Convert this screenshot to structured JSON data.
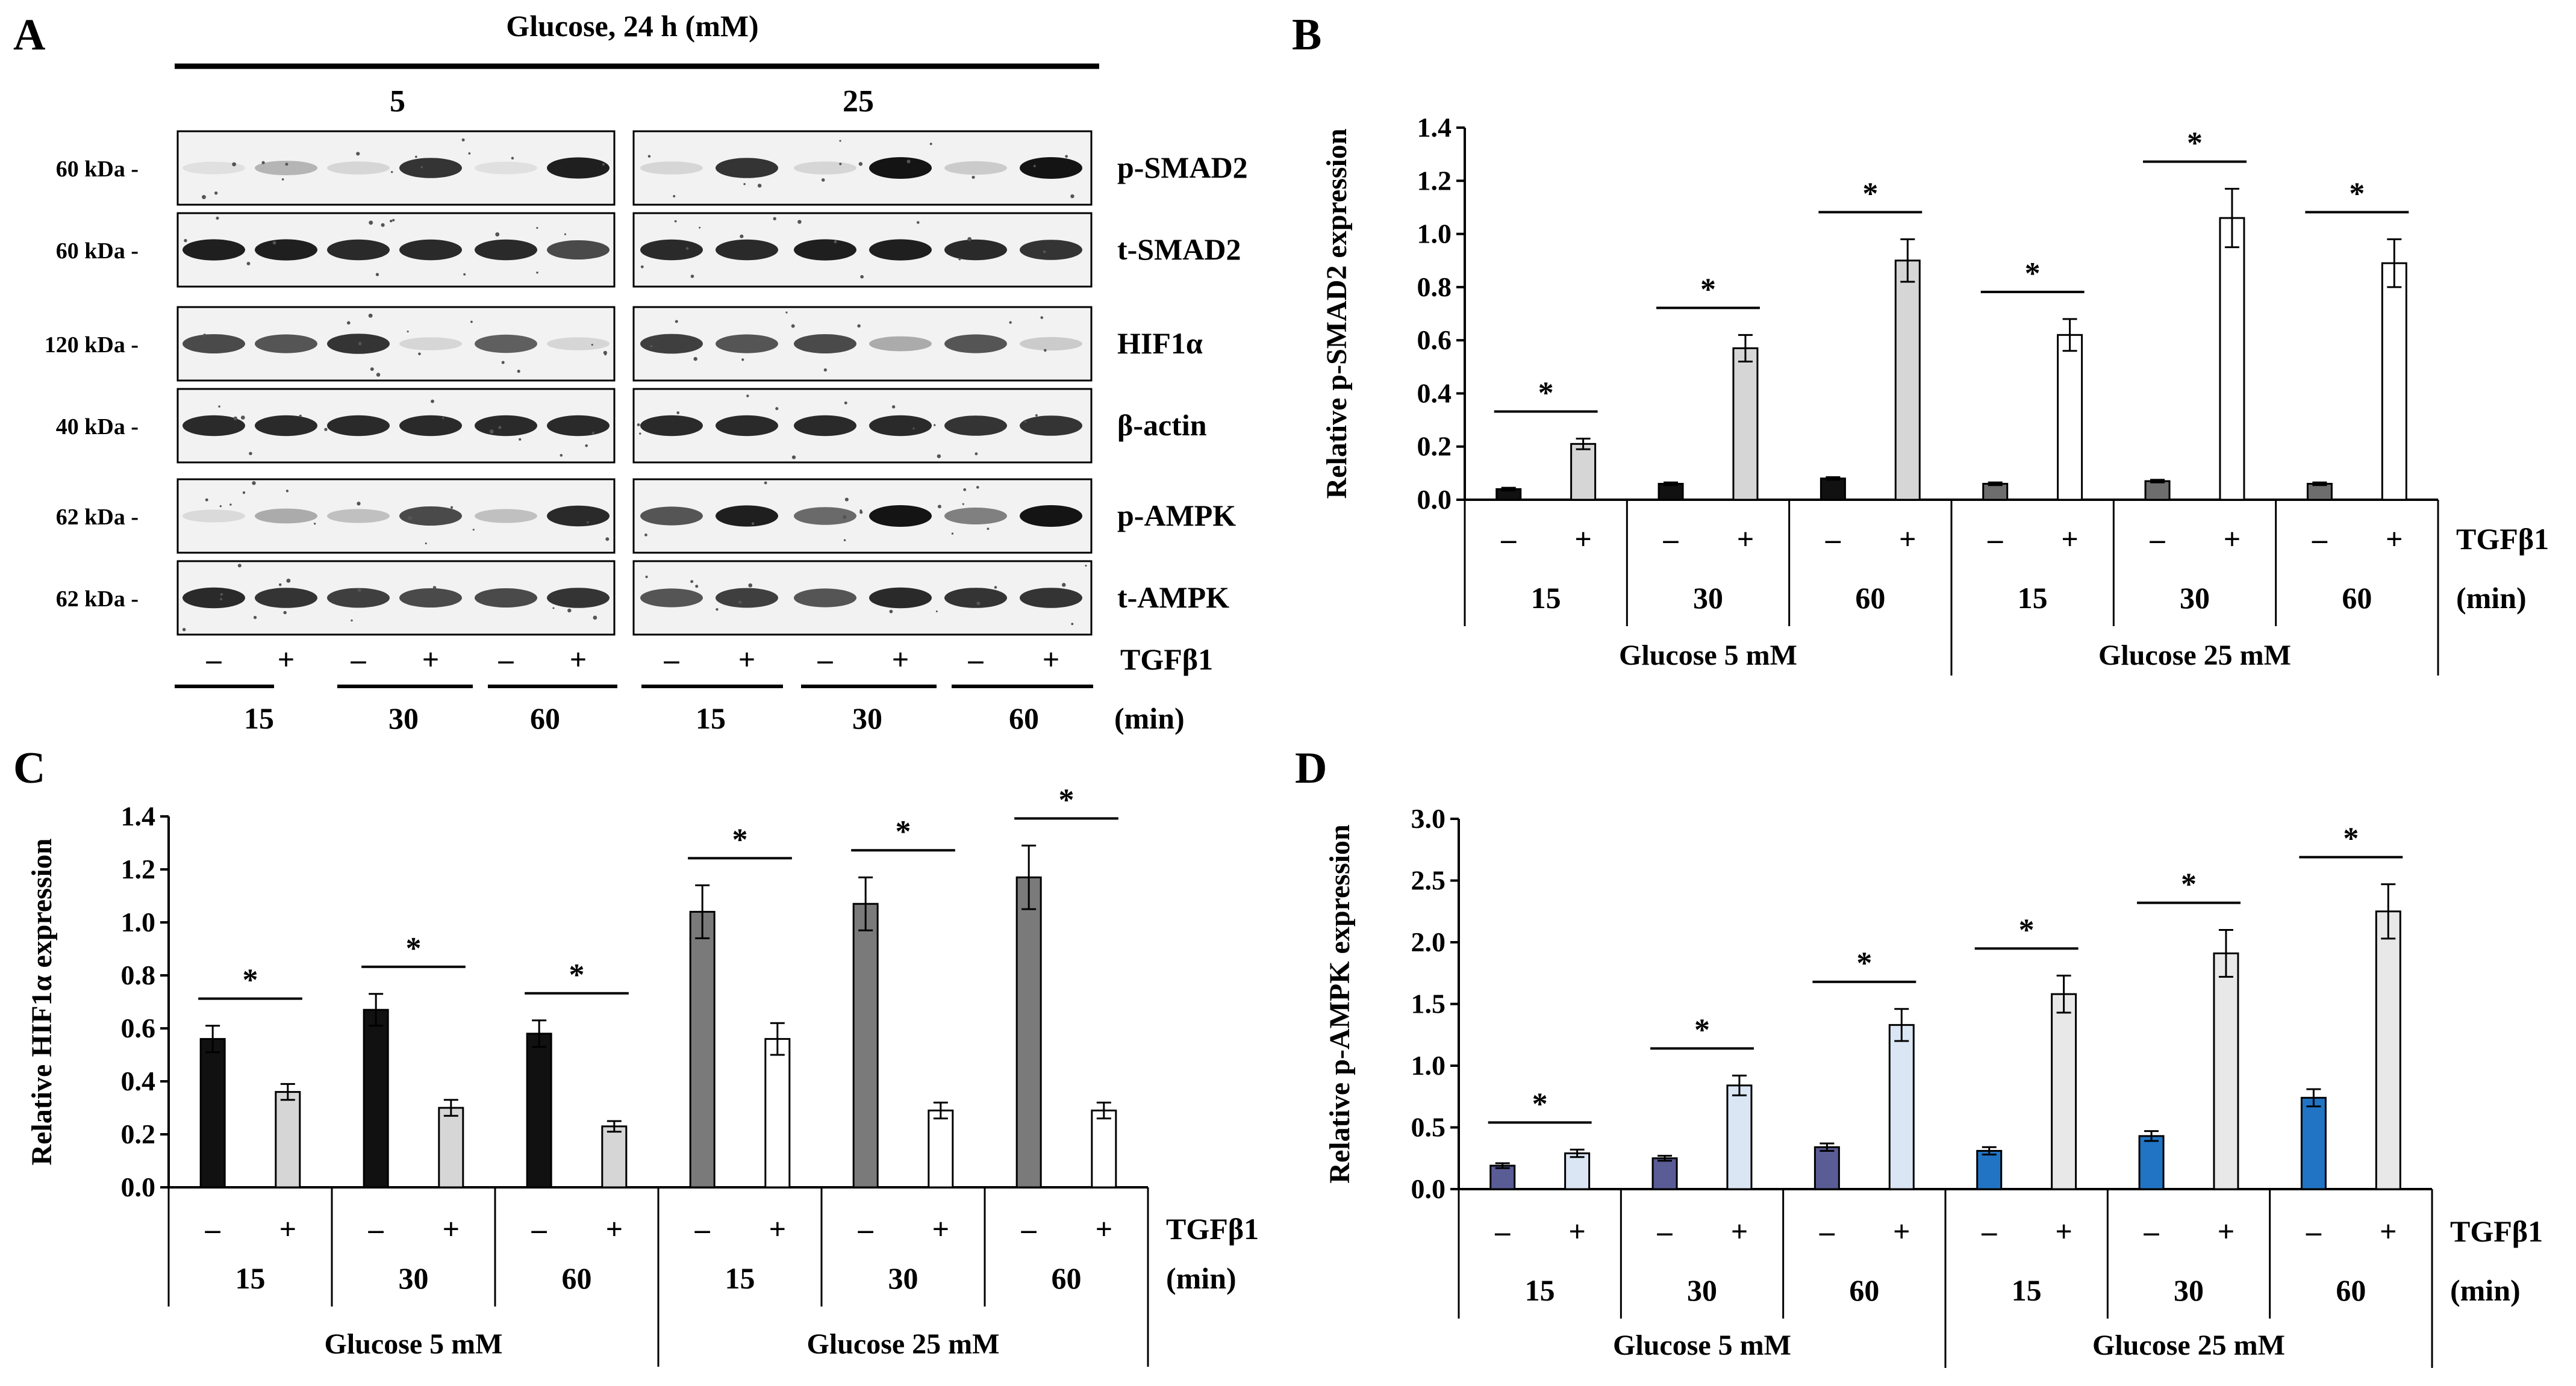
{
  "panel_letters": [
    "A",
    "B",
    "C",
    "D"
  ],
  "blot": {
    "glucose_title": "Glucose, 24 h (mM)",
    "group_5": "5",
    "group_25": "25",
    "rows": [
      {
        "mw": "60 kDa -",
        "name": "p-SMAD2"
      },
      {
        "mw": "60 kDa -",
        "name": "t-SMAD2"
      },
      {
        "mw": "120 kDa -",
        "name": "HIF1α"
      },
      {
        "mw": "40 kDa -",
        "name": "β-actin"
      },
      {
        "mw": "62 kDa -",
        "name": "p-AMPK"
      },
      {
        "mw": "62 kDa -",
        "name": "t-AMPK"
      }
    ],
    "treatment_signs": [
      "–",
      "+",
      "–",
      "+",
      "–",
      "+",
      "–",
      "+",
      "–",
      "+",
      "–",
      "+"
    ],
    "treatment_label": "TGFβ1",
    "times": [
      "15",
      "30",
      "60",
      "15",
      "30",
      "60"
    ],
    "time_unit": "(min)"
  },
  "chart_data": [
    {
      "panel": "B",
      "type": "bar",
      "ylabel": "Relative p-SMAD2 expression",
      "ylim": [
        0,
        1.4
      ],
      "yticks": [
        "0.0",
        "0.2",
        "0.4",
        "0.6",
        "0.8",
        "1.0",
        "1.2",
        "1.4"
      ],
      "treatment_label": "TGFβ1",
      "time_unit": "(min)",
      "signs": [
        "–",
        "+"
      ],
      "times": [
        "15",
        "30",
        "60",
        "15",
        "30",
        "60"
      ],
      "groups": [
        "Glucose 5 mM",
        "Glucose 25 mM"
      ],
      "significance": "*",
      "minus_values": [
        0.04,
        0.06,
        0.08,
        0.06,
        0.07,
        0.06
      ],
      "minus_errors": [
        0.005,
        0.005,
        0.005,
        0.005,
        0.005,
        0.005
      ],
      "plus_values": [
        0.21,
        0.57,
        0.9,
        0.62,
        1.06,
        0.89
      ],
      "plus_errors": [
        0.02,
        0.05,
        0.08,
        0.06,
        0.11,
        0.09
      ],
      "minus_colors": [
        "#111111",
        "#111111",
        "#111111",
        "#6d6d6d",
        "#6d6d6d",
        "#6d6d6d"
      ],
      "plus_colors": [
        "#d6d6d6",
        "#d6d6d6",
        "#d6d6d6",
        "#ffffff",
        "#ffffff",
        "#ffffff"
      ]
    },
    {
      "panel": "C",
      "type": "bar",
      "ylabel": "Relative HIF1α expression",
      "ylim": [
        0,
        1.4
      ],
      "yticks": [
        "0.0",
        "0.2",
        "0.4",
        "0.6",
        "0.8",
        "1.0",
        "1.2",
        "1.4"
      ],
      "treatment_label": "TGFβ1",
      "time_unit": "(min)",
      "signs": [
        "–",
        "+"
      ],
      "times": [
        "15",
        "30",
        "60",
        "15",
        "30",
        "60"
      ],
      "groups": [
        "Glucose 5 mM",
        "Glucose 25 mM"
      ],
      "significance": "*",
      "minus_values": [
        0.56,
        0.67,
        0.58,
        1.04,
        1.07,
        1.17
      ],
      "minus_errors": [
        0.05,
        0.06,
        0.05,
        0.1,
        0.1,
        0.12
      ],
      "plus_values": [
        0.36,
        0.3,
        0.23,
        0.56,
        0.29,
        0.29
      ],
      "plus_errors": [
        0.03,
        0.03,
        0.02,
        0.06,
        0.03,
        0.03
      ],
      "minus_colors": [
        "#111111",
        "#111111",
        "#111111",
        "#7a7a7a",
        "#7a7a7a",
        "#7a7a7a"
      ],
      "plus_colors": [
        "#d6d6d6",
        "#d6d6d6",
        "#d6d6d6",
        "#ffffff",
        "#ffffff",
        "#ffffff"
      ]
    },
    {
      "panel": "D",
      "type": "bar",
      "ylabel": "Relative p-AMPK expression",
      "ylim": [
        0,
        3.0
      ],
      "yticks": [
        "0.0",
        "0.5",
        "1.0",
        "1.5",
        "2.0",
        "2.5",
        "3.0"
      ],
      "treatment_label": "TGFβ1",
      "time_unit": "(min)",
      "signs": [
        "–",
        "+"
      ],
      "times": [
        "15",
        "30",
        "60",
        "15",
        "30",
        "60"
      ],
      "groups": [
        "Glucose 5 mM",
        "Glucose 25 mM"
      ],
      "significance": "*",
      "minus_values": [
        0.19,
        0.25,
        0.34,
        0.31,
        0.43,
        0.74
      ],
      "minus_errors": [
        0.02,
        0.02,
        0.03,
        0.03,
        0.04,
        0.07
      ],
      "plus_values": [
        0.29,
        0.84,
        1.33,
        1.58,
        1.91,
        2.25
      ],
      "plus_errors": [
        0.03,
        0.08,
        0.13,
        0.15,
        0.19,
        0.22
      ],
      "minus_colors": [
        "#5a5c96",
        "#5a5c96",
        "#5a5c96",
        "#2174c4",
        "#2174c4",
        "#2174c4"
      ],
      "plus_colors": [
        "#dae6f4",
        "#dae6f4",
        "#dae6f4",
        "#e8e8e8",
        "#e8e8e8",
        "#e8e8e8"
      ]
    }
  ]
}
